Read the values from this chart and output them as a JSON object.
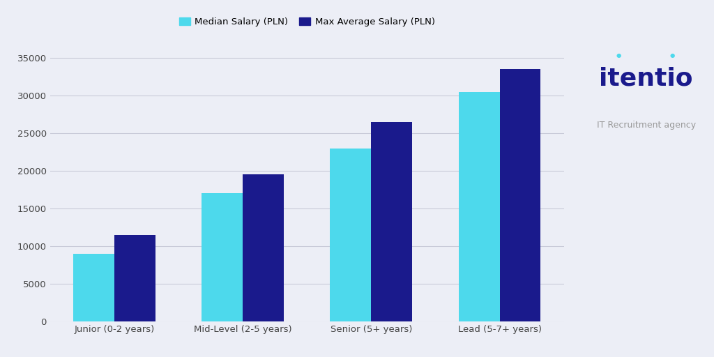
{
  "categories": [
    "Junior (0-2 years)",
    "Mid-Level (2-5 years)",
    "Senior (5+ years)",
    "Lead (5-7+ years)"
  ],
  "median_salaries": [
    9000,
    17000,
    23000,
    30500
  ],
  "max_salaries": [
    11500,
    19500,
    26500,
    33500
  ],
  "color_median": "#4DD9EC",
  "color_max": "#1A1A8C",
  "background_color": "#ECEEF6",
  "ylim": [
    0,
    37000
  ],
  "yticks": [
    0,
    5000,
    10000,
    15000,
    20000,
    25000,
    30000,
    35000
  ],
  "legend_median": "Median Salary (PLN)",
  "legend_max": "Max Average Salary (PLN)",
  "bar_width": 0.32,
  "grid_color": "#C8CAD8",
  "logo_color": "#1A1A8C",
  "subtitle_color": "#999999",
  "logo_text": "itentio",
  "logo_subtitle": "IT Recruitment agency",
  "tick_color": "#444444"
}
